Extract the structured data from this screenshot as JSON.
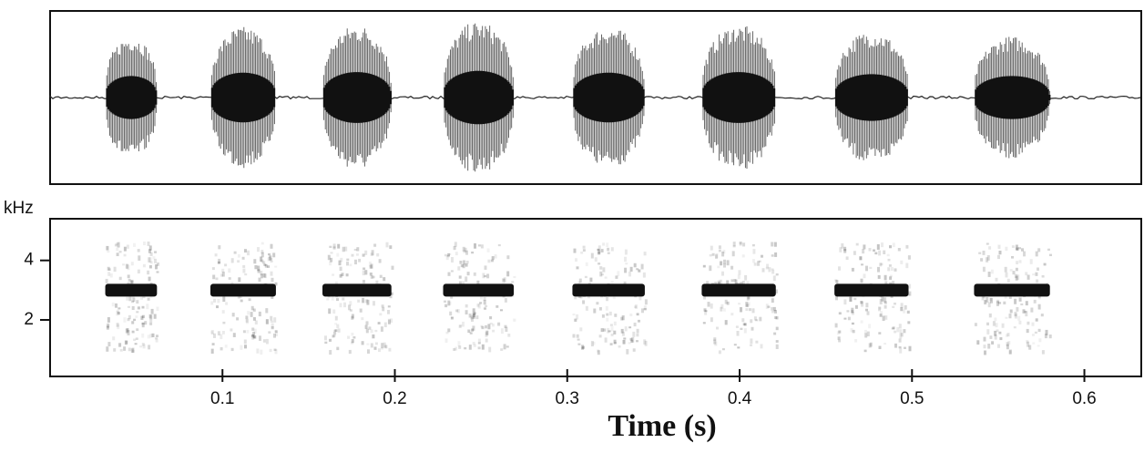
{
  "chart_data": [
    {
      "type": "waveform",
      "x_start": [
        0.032,
        0.093,
        0.158,
        0.228,
        0.303,
        0.378,
        0.455,
        0.536
      ],
      "x_end": [
        0.062,
        0.131,
        0.198,
        0.269,
        0.345,
        0.421,
        0.498,
        0.58
      ],
      "values": [
        0.71,
        0.82,
        0.84,
        0.88,
        0.82,
        0.84,
        0.77,
        0.71
      ],
      "xlim": [
        0,
        0.633
      ],
      "ylim": [
        -1,
        1
      ]
    },
    {
      "type": "spectrogram",
      "ylabel": "kHz",
      "xlabel": "Time (s)",
      "x_start": [
        0.032,
        0.093,
        0.158,
        0.228,
        0.303,
        0.378,
        0.455,
        0.536
      ],
      "x_end": [
        0.062,
        0.131,
        0.198,
        0.269,
        0.345,
        0.421,
        0.498,
        0.58
      ],
      "values": [
        3,
        3,
        3,
        3,
        3,
        3,
        3,
        3
      ],
      "xlim": [
        0,
        0.633
      ],
      "ylim": [
        0.1,
        5.4
      ],
      "xticks": [
        0.1,
        0.2,
        0.3,
        0.4,
        0.5,
        0.6
      ],
      "yticks": [
        2,
        4
      ]
    }
  ]
}
